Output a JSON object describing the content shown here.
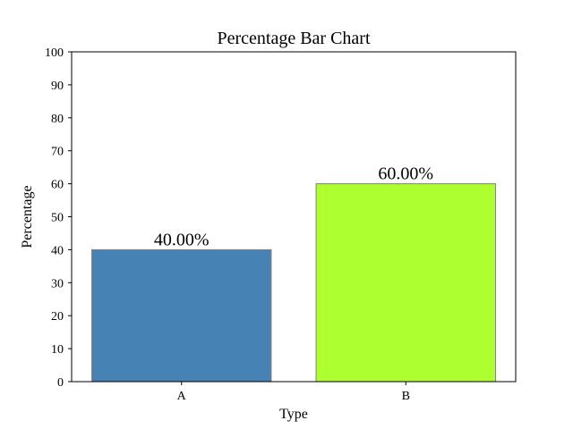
{
  "chart_data": {
    "type": "bar",
    "title": "Percentage Bar Chart",
    "xlabel": "Type",
    "ylabel": "Percentage",
    "categories": [
      "A",
      "B"
    ],
    "values": [
      40,
      60
    ],
    "data_labels": [
      "40.00%",
      "60.00%"
    ],
    "colors": [
      "#4682b4",
      "#adff2f"
    ],
    "edge_color": "#808080",
    "ylim": [
      0,
      100
    ],
    "yticks": [
      0,
      10,
      20,
      30,
      40,
      50,
      60,
      70,
      80,
      90,
      100
    ],
    "grid": false,
    "legend": "none"
  }
}
